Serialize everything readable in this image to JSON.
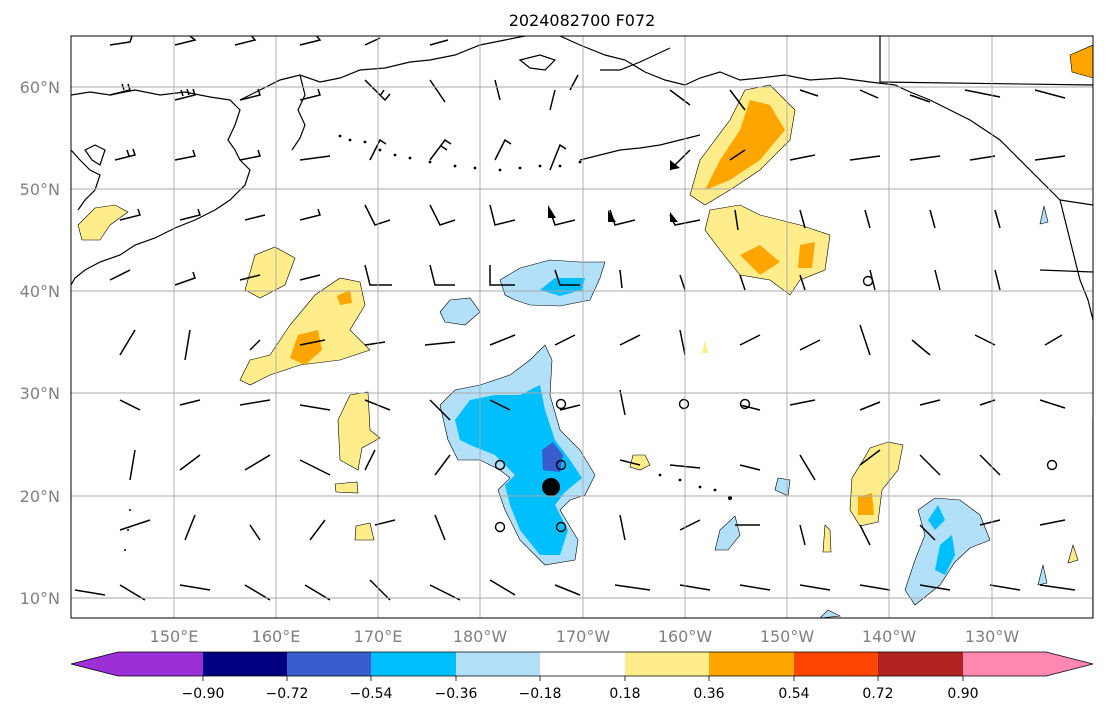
{
  "title": "2024082700 F072",
  "lat_labels": [
    "60°N",
    "50°N",
    "40°N",
    "30°N",
    "20°N",
    "10°N"
  ],
  "lon_labels": [
    "150°E",
    "160°E",
    "170°E",
    "180°W",
    "170°W",
    "160°W",
    "150°W",
    "140°W",
    "130°W"
  ],
  "colorbar": {
    "tick_labels": [
      "−0.90",
      "−0.72",
      "−0.54",
      "−0.36",
      "−0.18",
      "0.18",
      "0.36",
      "0.54",
      "0.72",
      "0.90"
    ],
    "colors": [
      "#9b30d6",
      "#000080",
      "#3a5ccc",
      "#00bfff",
      "#b2e0f8",
      "#ffffff",
      "#ffec8b",
      "#ffa500",
      "#ff4500",
      "#b22222",
      "#ff88b0"
    ]
  },
  "palette": {
    "coast": "#000000",
    "grid": "#aaaaaa",
    "frame": "#000000",
    "pos_light": "#ffec8b",
    "pos_mid": "#ffa500",
    "neg_light": "#b2e0f8",
    "neg_mid": "#00bfff",
    "neg_dark": "#3a5ccc"
  }
}
